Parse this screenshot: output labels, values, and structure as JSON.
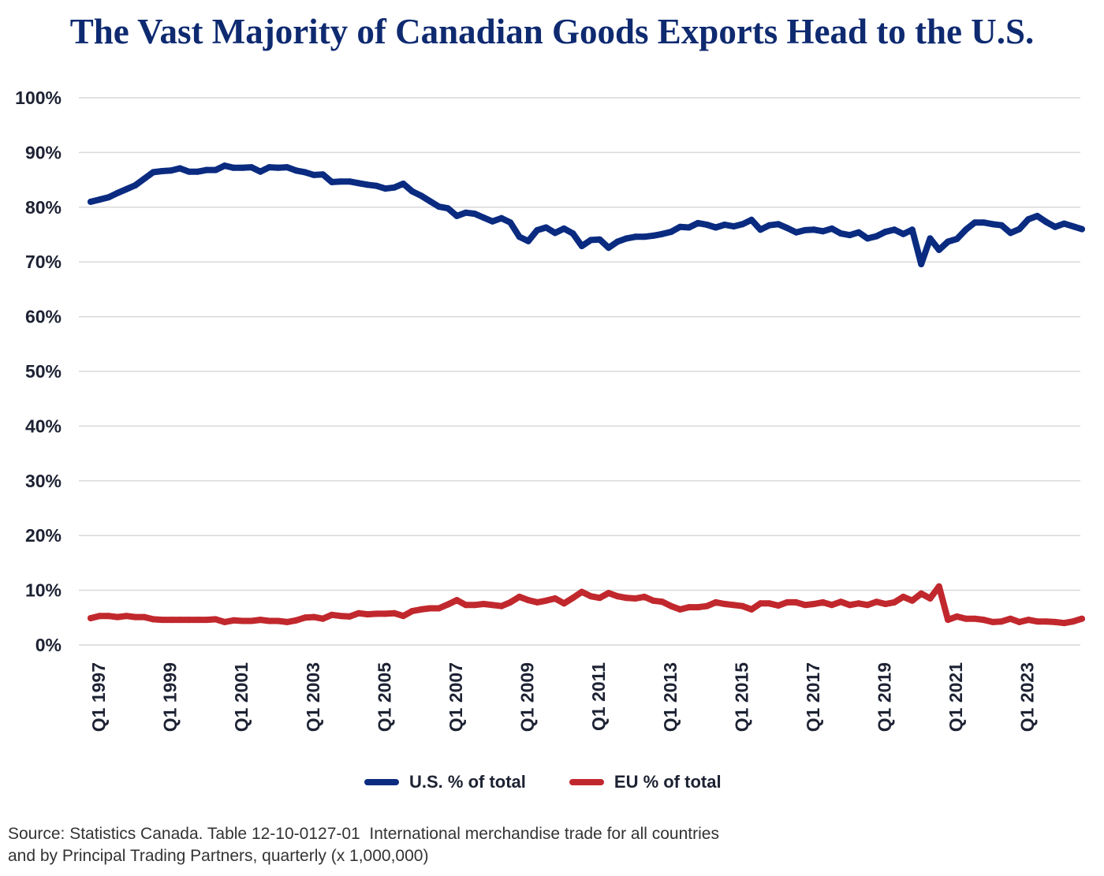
{
  "chart_data": {
    "type": "line",
    "title": "The Vast Majority of Canadian Goods Exports Head to the U.S.",
    "x_tick_labels": [
      "Q1 1997",
      "Q1 1999",
      "Q1 2001",
      "Q1 2003",
      "Q1 2005",
      "Q1 2007",
      "Q1 2009",
      "Q1 2011",
      "Q1 2013",
      "Q1 2015",
      "Q1 2017",
      "Q1 2019",
      "Q1 2021",
      "Q1 2023"
    ],
    "y_tick_labels": [
      "0%",
      "10%",
      "20%",
      "30%",
      "40%",
      "50%",
      "60%",
      "70%",
      "80%",
      "90%",
      "100%"
    ],
    "ylim": [
      0,
      100
    ],
    "grid": "horizontal",
    "legend_position": "bottom",
    "series": [
      {
        "name": "U.S. % of total",
        "color": "#0a2b80",
        "values": [
          81.0,
          81.4,
          81.8,
          82.6,
          83.3,
          84.0,
          85.2,
          86.4,
          86.6,
          86.7,
          87.1,
          86.5,
          86.5,
          86.8,
          86.8,
          87.6,
          87.2,
          87.2,
          87.3,
          86.5,
          87.3,
          87.2,
          87.3,
          86.7,
          86.4,
          85.9,
          86.0,
          84.6,
          84.7,
          84.7,
          84.4,
          84.1,
          83.9,
          83.4,
          83.6,
          84.3,
          82.9,
          82.1,
          81.1,
          80.1,
          79.8,
          78.4,
          79.0,
          78.8,
          78.1,
          77.4,
          78.0,
          77.2,
          74.6,
          73.8,
          75.8,
          76.3,
          75.3,
          76.1,
          75.2,
          72.9,
          74.0,
          74.1,
          72.6,
          73.7,
          74.3,
          74.6,
          74.6,
          74.8,
          75.1,
          75.5,
          76.4,
          76.3,
          77.1,
          76.8,
          76.3,
          76.8,
          76.5,
          76.9,
          77.7,
          75.9,
          76.7,
          76.9,
          76.2,
          75.4,
          75.8,
          75.9,
          75.6,
          76.1,
          75.2,
          74.9,
          75.4,
          74.3,
          74.7,
          75.5,
          75.9,
          75.1,
          75.9,
          69.6,
          74.3,
          72.2,
          73.7,
          74.2,
          75.9,
          77.2,
          77.2,
          76.9,
          76.7,
          75.3,
          76.0,
          77.8,
          78.4,
          77.3,
          76.4,
          77.0,
          76.5,
          76.0
        ]
      },
      {
        "name": "EU % of total",
        "color": "#c1282d",
        "values": [
          4.9,
          5.3,
          5.3,
          5.1,
          5.3,
          5.1,
          5.1,
          4.7,
          4.6,
          4.6,
          4.6,
          4.6,
          4.6,
          4.6,
          4.7,
          4.2,
          4.5,
          4.4,
          4.4,
          4.6,
          4.4,
          4.4,
          4.2,
          4.5,
          5.0,
          5.1,
          4.8,
          5.5,
          5.3,
          5.2,
          5.8,
          5.6,
          5.7,
          5.7,
          5.8,
          5.3,
          6.2,
          6.5,
          6.7,
          6.7,
          7.4,
          8.2,
          7.3,
          7.3,
          7.5,
          7.3,
          7.1,
          7.8,
          8.8,
          8.2,
          7.8,
          8.1,
          8.5,
          7.6,
          8.6,
          9.7,
          8.9,
          8.6,
          9.5,
          8.9,
          8.6,
          8.5,
          8.8,
          8.1,
          7.9,
          7.1,
          6.5,
          6.9,
          6.9,
          7.1,
          7.8,
          7.5,
          7.3,
          7.1,
          6.5,
          7.6,
          7.6,
          7.2,
          7.8,
          7.8,
          7.3,
          7.5,
          7.8,
          7.3,
          7.9,
          7.3,
          7.6,
          7.3,
          7.9,
          7.5,
          7.8,
          8.8,
          8.1,
          9.4,
          8.5,
          10.7,
          4.6,
          5.2,
          4.8,
          4.8,
          4.6,
          4.2,
          4.3,
          4.8,
          4.2,
          4.6,
          4.3,
          4.3,
          4.2,
          4.0,
          4.3,
          4.8
        ]
      }
    ]
  },
  "source": {
    "lines": [
      "Source: Statistics Canada. Table 12-10-0127-01  International merchandise trade for all countries",
      "and by Principal Trading Partners, quarterly (x 1,000,000)"
    ]
  }
}
